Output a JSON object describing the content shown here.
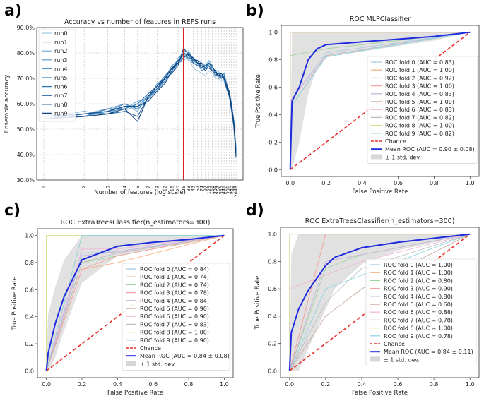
{
  "panels": [
    {
      "letter": "a)"
    },
    {
      "letter": "b)"
    },
    {
      "letter": "c)"
    },
    {
      "letter": "d)"
    }
  ],
  "chart_data": [
    {
      "type": "line",
      "title": "Accuracy vs number of features in REFS runs",
      "xlabel": "Number of features (log scale)",
      "ylabel": "Ensemble accuracy",
      "ylim": [
        30,
        90
      ],
      "yticks": [
        "30.0%",
        "40.0%",
        "50.0%",
        "60.0%",
        "70.0%",
        "80.0%",
        "90.0%"
      ],
      "xticks": [
        "1",
        "2",
        "3",
        "4",
        "5",
        "7",
        "9",
        "12",
        "16",
        "20",
        "26",
        "33",
        "43",
        "57",
        "74",
        "97",
        "125",
        "161",
        "208",
        "267",
        "343",
        "441",
        "566",
        "726",
        "930",
        "1188",
        "2048"
      ],
      "highlight_feature_index": 10,
      "series": [
        {
          "name": "run0",
          "color": "#a9cbe6",
          "values": [
            55,
            56,
            57,
            59,
            58,
            62,
            65,
            69,
            73,
            77,
            79,
            78,
            74,
            73,
            72,
            71,
            73,
            72,
            70,
            70,
            69,
            70,
            66,
            63,
            58,
            52,
            43
          ]
        },
        {
          "name": "run1",
          "color": "#93bfe0",
          "values": [
            54,
            55,
            56,
            57,
            60,
            63,
            66,
            70,
            74,
            76,
            78,
            81,
            77,
            75,
            74,
            74,
            75,
            73,
            72,
            71,
            71,
            72,
            68,
            64,
            60,
            53,
            41
          ]
        },
        {
          "name": "run2",
          "color": "#7fb3da",
          "values": [
            56,
            56,
            58,
            60,
            57,
            64,
            67,
            71,
            73,
            78,
            80,
            77,
            76,
            75,
            75,
            73,
            76,
            74,
            73,
            73,
            70,
            71,
            67,
            65,
            59,
            54,
            42
          ]
        },
        {
          "name": "run3",
          "color": "#6aa6d3",
          "values": [
            54,
            55,
            57,
            58,
            61,
            62,
            68,
            70,
            72,
            76,
            77,
            79,
            78,
            77,
            76,
            75,
            77,
            75,
            72,
            71,
            72,
            69,
            66,
            64,
            57,
            51,
            40
          ]
        },
        {
          "name": "run4",
          "color": "#5596c9",
          "values": [
            55,
            57,
            56,
            59,
            59,
            63,
            65,
            70,
            75,
            77,
            81,
            80,
            77,
            76,
            74,
            74,
            76,
            74,
            73,
            71,
            70,
            72,
            67,
            64,
            59,
            52,
            42
          ]
        },
        {
          "name": "run5",
          "color": "#3f86bf",
          "values": [
            54,
            56,
            57,
            60,
            58,
            62,
            66,
            69,
            73,
            76,
            78,
            80,
            78,
            76,
            75,
            75,
            75,
            73,
            72,
            72,
            71,
            71,
            68,
            65,
            60,
            53,
            41
          ]
        },
        {
          "name": "run6",
          "color": "#2f74b1",
          "values": [
            55,
            55,
            58,
            58,
            60,
            64,
            67,
            71,
            74,
            77,
            79,
            78,
            77,
            76,
            73,
            74,
            76,
            74,
            73,
            70,
            71,
            70,
            67,
            64,
            58,
            52,
            40
          ]
        },
        {
          "name": "run7",
          "color": "#23629f",
          "values": [
            54,
            56,
            56,
            57,
            55,
            63,
            66,
            70,
            72,
            75,
            82,
            79,
            76,
            75,
            75,
            73,
            75,
            73,
            71,
            72,
            70,
            71,
            67,
            65,
            60,
            53,
            42
          ]
        },
        {
          "name": "run8",
          "color": "#17508b",
          "values": [
            55,
            56,
            57,
            59,
            59,
            61,
            65,
            68,
            73,
            77,
            78,
            80,
            77,
            77,
            74,
            75,
            76,
            75,
            72,
            71,
            71,
            70,
            66,
            63,
            59,
            51,
            41
          ]
        },
        {
          "name": "run9",
          "color": "#0e3f78",
          "values": [
            54,
            55,
            56,
            58,
            53,
            63,
            67,
            70,
            74,
            76,
            80,
            79,
            78,
            76,
            76,
            74,
            74,
            73,
            73,
            71,
            72,
            70,
            67,
            64,
            58,
            53,
            39
          ]
        }
      ]
    },
    {
      "type": "line",
      "title": "ROC MLPClassifier",
      "xlabel": "False Positive Rate",
      "ylabel": "True Positive Rate",
      "xlim": [
        0,
        1
      ],
      "ylim": [
        0,
        1
      ],
      "ticks": [
        "0.0",
        "0.2",
        "0.4",
        "0.6",
        "0.8",
        "1.0"
      ],
      "folds": [
        {
          "label": "ROC fold 0 (AUC = 0.83)",
          "color": "#a9cbe6",
          "x": [
            0,
            0,
            0.2,
            1
          ],
          "y": [
            0,
            0.5,
            0.85,
            1
          ]
        },
        {
          "label": "ROC fold 1 (AUC = 1.00)",
          "color": "#f4b183",
          "x": [
            0,
            0,
            1
          ],
          "y": [
            0,
            1,
            1
          ]
        },
        {
          "label": "ROC fold 2 (AUC = 0.92)",
          "color": "#9fd39f",
          "x": [
            0,
            0,
            0.2,
            1
          ],
          "y": [
            0,
            0.83,
            0.88,
            1
          ]
        },
        {
          "label": "ROC fold 3 (AUC = 1.00)",
          "color": "#f4a3a3",
          "x": [
            0,
            0,
            1
          ],
          "y": [
            0,
            1,
            1
          ]
        },
        {
          "label": "ROC fold 4 (AUC = 0.83)",
          "color": "#c7b3dc",
          "x": [
            0,
            0,
            0.2,
            1
          ],
          "y": [
            0,
            0.5,
            0.83,
            1
          ]
        },
        {
          "label": "ROC fold 5 (AUC = 1.00)",
          "color": "#c9a79d",
          "x": [
            0,
            0,
            1
          ],
          "y": [
            0,
            1,
            1
          ]
        },
        {
          "label": "ROC fold 6 (AUC = 0.83)",
          "color": "#f2b6dc",
          "x": [
            0,
            0,
            0.2,
            1
          ],
          "y": [
            0,
            0.5,
            0.83,
            1
          ]
        },
        {
          "label": "ROC fold 7 (AUC = 0.82)",
          "color": "#bdbdbd",
          "x": [
            0,
            0,
            0.2,
            1
          ],
          "y": [
            0,
            0.45,
            0.83,
            1
          ]
        },
        {
          "label": "ROC fold 8 (AUC = 1.00)",
          "color": "#d9d98a",
          "x": [
            0,
            0,
            1
          ],
          "y": [
            0,
            1,
            1
          ]
        },
        {
          "label": "ROC fold 9 (AUC = 0.82)",
          "color": "#8fd6e0",
          "x": [
            0,
            0,
            0.2,
            1
          ],
          "y": [
            0,
            0.45,
            0.82,
            1
          ]
        }
      ],
      "chance_label": "Chance",
      "mean_label": "Mean ROC (AUC = 0.90 ± 0.08)",
      "std_label": "± 1 std. dev.",
      "mean": {
        "x": [
          0,
          0.01,
          0.05,
          0.1,
          0.15,
          0.2,
          0.4,
          0.6,
          0.8,
          1
        ],
        "y": [
          0,
          0.5,
          0.6,
          0.8,
          0.88,
          0.91,
          0.93,
          0.95,
          0.97,
          1
        ]
      },
      "std_upper": [
        0,
        1,
        1,
        1,
        1,
        1,
        1,
        1,
        1,
        1
      ],
      "std_lower": [
        0,
        0,
        0.2,
        0.55,
        0.75,
        0.82,
        0.86,
        0.9,
        0.94,
        1
      ]
    },
    {
      "type": "line",
      "title": "ROC ExtraTreesClassifier(n_estimators=300)",
      "xlabel": "False Positive Rate",
      "ylabel": "True Positive Rate",
      "xlim": [
        0,
        1
      ],
      "ylim": [
        0,
        1
      ],
      "ticks": [
        "0.0",
        "0.2",
        "0.4",
        "0.6",
        "0.8",
        "1.0"
      ],
      "folds": [
        {
          "label": "ROC fold 0 (AUC = 0.84)",
          "color": "#a9cbe6",
          "x": [
            0,
            0.2,
            0.4,
            1
          ],
          "y": [
            0,
            0.87,
            0.88,
            1
          ]
        },
        {
          "label": "ROC fold 1 (AUC = 0.74)",
          "color": "#f4b183",
          "x": [
            0,
            0.2,
            0.4,
            1
          ],
          "y": [
            0,
            0.75,
            0.8,
            1
          ]
        },
        {
          "label": "ROC fold 2 (AUC = 0.74)",
          "color": "#9fd39f",
          "x": [
            0,
            0.2,
            0.4,
            1
          ],
          "y": [
            0,
            0.8,
            0.85,
            1
          ]
        },
        {
          "label": "ROC fold 3 (AUC = 0.78)",
          "color": "#f4a3a3",
          "x": [
            0,
            0.2,
            0.4,
            1
          ],
          "y": [
            0,
            0.75,
            0.85,
            1
          ]
        },
        {
          "label": "ROC fold 4 (AUC = 0.84)",
          "color": "#c7b3dc",
          "x": [
            0,
            0.2,
            0.4,
            1
          ],
          "y": [
            0,
            0.85,
            0.88,
            1
          ]
        },
        {
          "label": "ROC fold 5 (AUC = 0.90)",
          "color": "#c9a79d",
          "x": [
            0,
            0.2,
            0.4,
            1
          ],
          "y": [
            0,
            1,
            1,
            1
          ]
        },
        {
          "label": "ROC fold 6 (AUC = 0.90)",
          "color": "#f2b6dc",
          "x": [
            0,
            0.2,
            0.4,
            1
          ],
          "y": [
            0,
            0.9,
            0.9,
            1
          ]
        },
        {
          "label": "ROC fold 7 (AUC = 0.83)",
          "color": "#bdbdbd",
          "x": [
            0,
            0.2,
            0.4,
            1
          ],
          "y": [
            0,
            0.8,
            0.87,
            1
          ]
        },
        {
          "label": "ROC fold 8 (AUC = 1.00)",
          "color": "#d9d98a",
          "x": [
            0,
            0,
            1
          ],
          "y": [
            0,
            1,
            1
          ]
        },
        {
          "label": "ROC fold 9 (AUC = 0.90)",
          "color": "#8fd6e0",
          "x": [
            0,
            0.2,
            0.4,
            1
          ],
          "y": [
            0,
            1,
            1,
            1
          ]
        }
      ],
      "chance_label": "Chance",
      "mean_label": "Mean ROC (AUC = 0.84 ± 0.08)",
      "std_label": "± 1 std. dev.",
      "mean": {
        "x": [
          0,
          0.01,
          0.05,
          0.1,
          0.2,
          0.4,
          0.6,
          0.8,
          1
        ],
        "y": [
          0,
          0.13,
          0.35,
          0.55,
          0.82,
          0.92,
          0.95,
          0.97,
          1
        ]
      },
      "std_upper": [
        0,
        0.42,
        0.62,
        0.82,
        1,
        1,
        1,
        1,
        1
      ],
      "std_lower": [
        0,
        0,
        0.1,
        0.3,
        0.65,
        0.85,
        0.9,
        0.94,
        1
      ]
    },
    {
      "type": "line",
      "title": "ROC ExtraTreesClassifier(n_estimators=300)",
      "xlabel": "False Positive Rate",
      "ylabel": "True Positive Rate",
      "xlim": [
        0,
        1
      ],
      "ylim": [
        0,
        1
      ],
      "ticks": [
        "0.0",
        "0.2",
        "0.4",
        "0.6",
        "0.8",
        "1.0"
      ],
      "folds": [
        {
          "label": "ROC fold 0 (AUC = 1.00)",
          "color": "#a9cbe6",
          "x": [
            0,
            0,
            1
          ],
          "y": [
            0,
            1,
            1
          ]
        },
        {
          "label": "ROC fold 1 (AUC = 1.00)",
          "color": "#f4b183",
          "x": [
            0,
            0.2,
            1
          ],
          "y": [
            0,
            1,
            1
          ]
        },
        {
          "label": "ROC fold 2 (AUC = 0.80)",
          "color": "#9fd39f",
          "x": [
            0,
            0.2,
            0.4,
            1
          ],
          "y": [
            0,
            0.75,
            0.85,
            1
          ]
        },
        {
          "label": "ROC fold 3 (AUC = 0.90)",
          "color": "#f4a3a3",
          "x": [
            0,
            0.2,
            0.4,
            1
          ],
          "y": [
            0,
            1,
            1,
            1
          ]
        },
        {
          "label": "ROC fold 4 (AUC = 0.80)",
          "color": "#c7b3dc",
          "x": [
            0,
            0.2,
            0.4,
            1
          ],
          "y": [
            0,
            0.8,
            0.85,
            1
          ]
        },
        {
          "label": "ROC fold 5 (AUC = 0.60)",
          "color": "#c9a79d",
          "x": [
            0,
            0.2,
            0.4,
            1
          ],
          "y": [
            0,
            0.4,
            0.6,
            1
          ]
        },
        {
          "label": "ROC fold 6 (AUC = 0.88)",
          "color": "#f2b6dc",
          "x": [
            0,
            0,
            0.4,
            1
          ],
          "y": [
            0,
            0.6,
            0.8,
            1
          ]
        },
        {
          "label": "ROC fold 7 (AUC = 0.78)",
          "color": "#bdbdbd",
          "x": [
            0,
            0.2,
            0.4,
            1
          ],
          "y": [
            0,
            0.5,
            0.75,
            1
          ]
        },
        {
          "label": "ROC fold 8 (AUC = 1.00)",
          "color": "#d9d98a",
          "x": [
            0,
            0,
            1
          ],
          "y": [
            0,
            1,
            1
          ]
        },
        {
          "label": "ROC fold 9 (AUC = 0.78)",
          "color": "#8fd6e0",
          "x": [
            0,
            0.2,
            0.4,
            1
          ],
          "y": [
            0,
            0.6,
            0.7,
            1
          ]
        }
      ],
      "chance_label": "Chance",
      "mean_label": "Mean ROC (AUC = 0.84 ± 0.11)",
      "std_label": "± 1 std. dev.",
      "mean": {
        "x": [
          0,
          0.01,
          0.05,
          0.1,
          0.2,
          0.25,
          0.4,
          0.6,
          0.8,
          1
        ],
        "y": [
          0,
          0.28,
          0.45,
          0.58,
          0.77,
          0.83,
          0.9,
          0.94,
          0.97,
          1
        ]
      },
      "std_upper": [
        0,
        0.85,
        1,
        1,
        1,
        1,
        1,
        1,
        1,
        1
      ],
      "std_lower": [
        0,
        0,
        0,
        0.15,
        0.45,
        0.6,
        0.78,
        0.88,
        0.94,
        1
      ]
    }
  ]
}
